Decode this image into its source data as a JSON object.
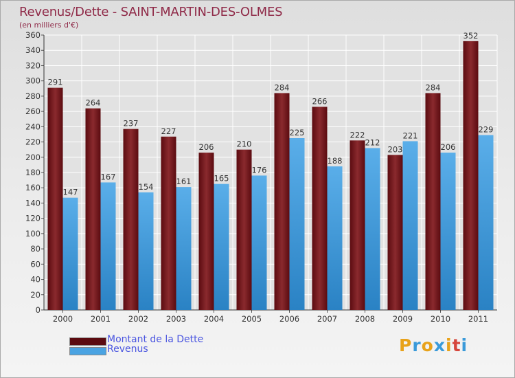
{
  "chart_data": {
    "type": "bar",
    "title": "Revenus/Dette - SAINT-MARTIN-DES-OLMES",
    "subtitle": "(en milliers d'€)",
    "categories": [
      "2000",
      "2001",
      "2002",
      "2003",
      "2004",
      "2005",
      "2006",
      "2007",
      "2008",
      "2009",
      "2010",
      "2011"
    ],
    "series": [
      {
        "name": "Montant de la Dette",
        "color": "#7a1e24",
        "values": [
          291,
          264,
          237,
          227,
          206,
          210,
          284,
          266,
          222,
          203,
          284,
          352
        ]
      },
      {
        "name": "Revenus",
        "color": "#4aa3e2",
        "values": [
          147,
          167,
          154,
          161,
          165,
          176,
          225,
          188,
          212,
          221,
          206,
          229
        ]
      }
    ],
    "ylim": [
      0,
      360
    ],
    "ytick_step": 20,
    "grid": true,
    "legend": "bottom-left"
  },
  "logo": {
    "letters": [
      "P",
      "r",
      "o",
      "x",
      "i",
      "t",
      "i"
    ],
    "colors": [
      "#e8a21a",
      "#3a9ad9",
      "#e8a21a",
      "#3a9ad9",
      "#e8a21a",
      "#d6463c",
      "#3a9ad9"
    ]
  }
}
